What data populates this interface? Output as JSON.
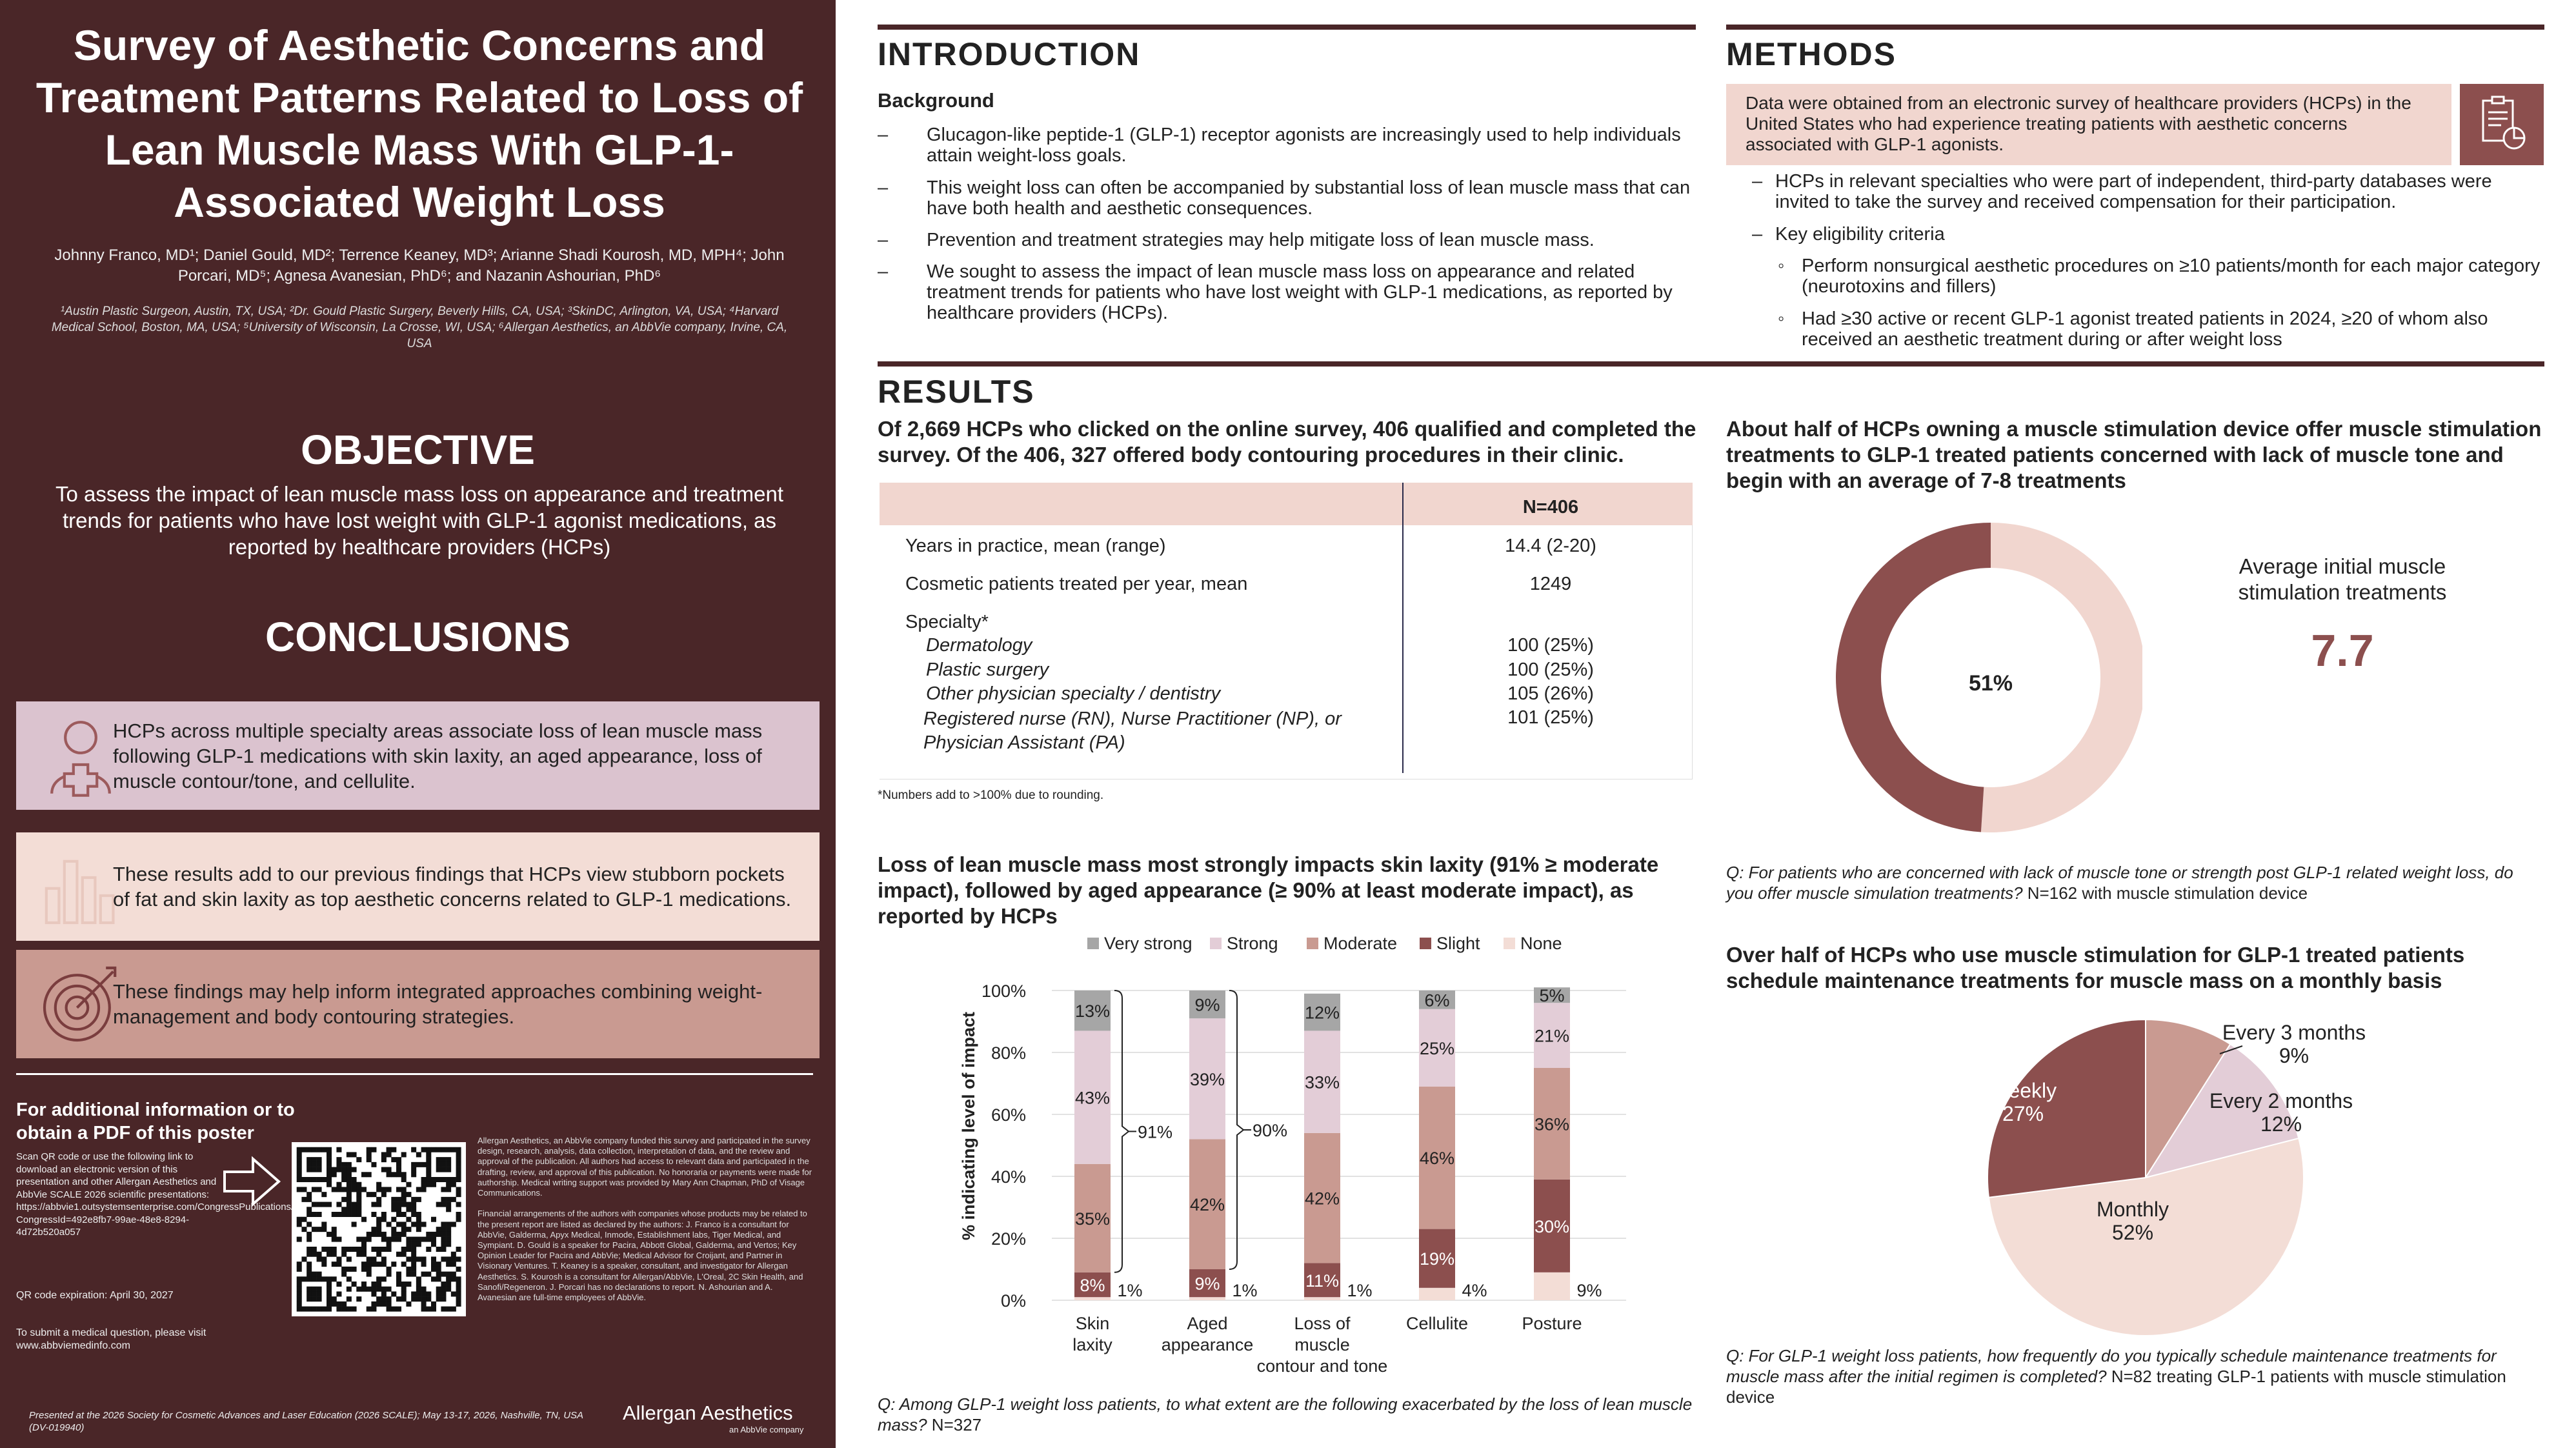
{
  "sidebar": {
    "title": "Survey of Aesthetic Concerns and Treatment Patterns Related to Loss of Lean Muscle Mass With GLP-1-Associated Weight Loss",
    "authors": "Johnny Franco, MD¹; Daniel Gould, MD²; Terrence Keaney, MD³; Arianne Shadi Kourosh, MD, MPH⁴; John Porcari, MD⁵; Agnesa Avanesian, PhD⁶; and Nazanin Ashourian, PhD⁶",
    "affiliations": "¹Austin Plastic Surgeon, Austin, TX, USA; ²Dr. Gould Plastic Surgery, Beverly Hills, CA, USA; ³SkinDC, Arlington, VA, USA; ⁴Harvard Medical School, Boston, MA, USA; ⁵University of Wisconsin, La Crosse, WI, USA; ⁶Allergan Aesthetics, an AbbVie company, Irvine, CA, USA",
    "objective_heading": "OBJECTIVE",
    "objective_text": "To assess the impact of lean muscle mass loss on appearance and treatment trends for patients who have lost weight with GLP-1 agonist medications, as reported by healthcare providers (HCPs)",
    "conclusions_heading": "CONCLUSIONS",
    "conclusions": [
      {
        "icon": "person-medical-icon",
        "text": "HCPs across multiple specialty areas associate loss of lean muscle mass following GLP-1 medications with skin laxity, an aged appearance, loss of muscle contour/tone, and cellulite.",
        "bg": "#dbc3cf"
      },
      {
        "icon": "bar-chart-icon",
        "text": "These results add to our previous findings that HCPs view stubborn pockets of fat and skin laxity as top aesthetic concerns related to GLP-1 medications.",
        "bg": "#f3ddd6"
      },
      {
        "icon": "target-icon",
        "text": "These findings may help inform integrated approaches combining weight-management and body contouring strategies.",
        "bg": "#c99a91"
      }
    ],
    "info_title": "For additional information or to obtain a PDF of this poster",
    "info_text": "Scan QR code or use the following link to download an electronic version of this presentation and other Allergan Aesthetics and AbbVie SCALE 2026 scientific presentations: https://abbvie1.outsystemsenterprise.com/CongressPublications/CongressHome?CongressId=492e8fb7-99ae-48e8-8294-4d72b520a057",
    "qr_expiration": "QR code expiration: April 30, 2027",
    "medical_question": "To submit a medical question, please visit www.abbviemedinfo.com",
    "disclosures": "Allergan Aesthetics, an AbbVie company funded this survey and participated in the survey design, research, analysis, data collection, interpretation of data, and the review and approval of the publication. All authors had access to relevant data and participated in the drafting, review, and approval of this publication. No honoraria or payments were made for authorship. Medical writing support was provided by Mary Ann Chapman, PhD of Visage Communications.\n\nFinancial arrangements of the authors with companies whose products may be related to the present report are listed as declared by the authors: J. Franco is a consultant for AbbVie, Galderma, Apyx Medical, Inmode, Establishment labs, Tiger Medical, and Sympiant. D. Gould is a speaker for Pacira, Abbott Global, Galderma, and Vertos; Key Opinion Leader for Pacira and AbbVie; Medical Advisor for Croijant, and Partner in Visionary Ventures. T. Keaney is a speaker, consultant, and investigator for Allergan Aesthetics. S. Kourosh is a consultant for Allergan/AbbVie, L'Oreal, 2C Skin Health, and Sanofi/Regeneron. J. Porcari has no declarations to report. N. Ashourian and A. Avanesian are full-time employees of AbbVie.",
    "presented": "Presented at the 2026 Society for Cosmetic Advances and Laser Education (2026 SCALE); May 13-17, 2026, Nashville, TN, USA (DV-019940)",
    "brand": "Allergan Aesthetics",
    "brand_sub": "an AbbVie company"
  },
  "intro": {
    "heading": "INTRODUCTION",
    "subheading": "Background",
    "bullets": [
      "Glucagon-like peptide-1 (GLP-1) receptor agonists are increasingly used to help individuals attain weight-loss goals.",
      "This weight loss can often be accompanied by substantial loss of lean muscle mass that can have both health and aesthetic consequences.",
      "Prevention and treatment strategies may help mitigate loss of lean muscle mass.",
      "We sought to assess the impact of lean muscle mass loss on appearance and related treatment trends for patients who have lost weight with GLP-1 medications, as reported by healthcare providers (HCPs)."
    ]
  },
  "methods": {
    "heading": "METHODS",
    "box_text": "Data were obtained from an electronic survey of healthcare providers (HCPs) in the United States who had experience treating patients with aesthetic concerns associated with GLP-1 agonists.",
    "bullets": [
      "HCPs in relevant specialties who were part of independent, third-party databases were invited to take the survey and received compensation for their participation.",
      "Key eligibility criteria"
    ],
    "sub_bullets": [
      "Perform nonsurgical aesthetic procedures on ≥10 patients/month for each major category (neurotoxins and fillers)",
      "Had ≥30 active or recent GLP-1 agonist treated patients in 2024, ≥20 of whom also received an aesthetic treatment during or after weight loss"
    ]
  },
  "results": {
    "heading": "RESULTS",
    "table_headline": "Of 2,669 HCPs who clicked on the online survey, 406 qualified and completed the survey. Of the 406, 327 offered body contouring procedures in their clinic.",
    "table": {
      "col_header": "N=406",
      "rows": [
        {
          "label": "Years in practice, mean (range)",
          "value": "14.4 (2-20)"
        },
        {
          "label": "Cosmetic patients treated per year, mean",
          "value": "1249"
        }
      ],
      "specialty_label": "Specialty*",
      "specialties": [
        {
          "label": "Dermatology",
          "value": "100 (25%)"
        },
        {
          "label": "Plastic surgery",
          "value": "100 (25%)"
        },
        {
          "label": "Other physician specialty / dentistry",
          "value": "105 (26%)"
        },
        {
          "label": "Registered nurse (RN), Nurse Practitioner (NP), or Physician Assistant (PA)",
          "value": "101 (25%)"
        }
      ],
      "footnote": "*Numbers add to >100% due to rounding."
    },
    "bar_headline": "Loss of lean muscle mass most strongly impacts skin laxity (91% ≥ moderate impact), followed by aged appearance (≥ 90% at least moderate impact), as reported by HCPs",
    "bar_question": "Q: Among GLP-1 weight loss patients, to what extent are the following exacerbated by the loss of lean muscle mass?",
    "bar_question_n": " N=327",
    "donut_headline": "About half of HCPs owning a muscle stimulation device offer muscle stimulation treatments to GLP-1 treated patients concerned with lack of muscle tone and begin with an average of 7-8 treatments",
    "donut_question": "Q: For patients who are concerned with lack of muscle tone or strength post GLP-1 related weight loss, do you offer muscle simulation treatments?",
    "donut_question_n": " N=162 with muscle stimulation device",
    "avg_label": "Average initial muscle stimulation treatments",
    "avg_value": "7.7",
    "pie_headline": "Over half of HCPs who use muscle stimulation for GLP-1 treated patients schedule maintenance treatments for muscle mass on a monthly basis",
    "pie_question": "Q: For GLP-1 weight loss patients, how frequently do you typically schedule maintenance treatments for muscle mass after the initial regimen is completed?",
    "pie_question_n": " N=82 treating GLP-1 patients with muscle stimulation device"
  },
  "colors": {
    "maroon": "#4a2628",
    "very_strong": "#a6a6a6",
    "strong": "#e3cdd7",
    "moderate": "#c99a91",
    "slight": "#8c4f4e",
    "none": "#f3ddd6",
    "donut_dark": "#8c4f4e",
    "donut_light": "#f1d6cf",
    "pink_box": "#f1d6cf",
    "accent_value": "#8c4f4e"
  },
  "chart_data": [
    {
      "type": "bar",
      "stacked": true,
      "categories": [
        "Skin laxity",
        "Aged appearance",
        "Loss of muscle contour and tone",
        "Cellulite",
        "Posture"
      ],
      "ylabel": "% indicating level of impact",
      "ylim": [
        0,
        100
      ],
      "yticks": [
        "0%",
        "20%",
        "40%",
        "60%",
        "80%",
        "100%"
      ],
      "legend_position": "top",
      "series": [
        {
          "name": "None",
          "values": [
            1,
            1,
            1,
            4,
            9
          ],
          "color": "#f3ddd6"
        },
        {
          "name": "Slight",
          "values": [
            8,
            9,
            11,
            19,
            30
          ],
          "color": "#8c4f4e"
        },
        {
          "name": "Moderate",
          "values": [
            35,
            42,
            42,
            46,
            36
          ],
          "color": "#c99a91"
        },
        {
          "name": "Strong",
          "values": [
            43,
            39,
            33,
            25,
            21
          ],
          "color": "#e3cdd7"
        },
        {
          "name": "Very strong",
          "values": [
            13,
            9,
            12,
            6,
            5
          ],
          "color": "#a6a6a6"
        }
      ],
      "labels": [
        [
          "1%",
          "8%",
          "35%",
          "43%",
          "13%"
        ],
        [
          "1%",
          "9%",
          "42%",
          "39%",
          "9%"
        ],
        [
          "1%",
          "11%",
          "42%",
          "33%",
          "12%"
        ],
        [
          "4%",
          "19%",
          "46%",
          "25%",
          "6%"
        ],
        [
          "9%",
          "30%",
          "36%",
          "21%",
          "5%"
        ]
      ],
      "brackets": [
        "91%",
        "90%"
      ]
    },
    {
      "type": "pie",
      "donut": true,
      "slices": [
        {
          "label": "51%",
          "value": 51,
          "color": "#f1d6cf"
        },
        {
          "label": "",
          "value": 49,
          "color": "#8c4f4e"
        }
      ],
      "center_label": "51%"
    },
    {
      "type": "pie",
      "slices": [
        {
          "name": "Every 3 months",
          "value": 9,
          "label": "9%",
          "color": "#c99a91"
        },
        {
          "name": "Every 2 months",
          "value": 12,
          "label": "12%",
          "color": "#e3cdd7"
        },
        {
          "name": "Monthly",
          "value": 52,
          "label": "52%",
          "color": "#f3ddd6"
        },
        {
          "name": "Weekly",
          "value": 27,
          "label": "27%",
          "color": "#8c4f4e"
        }
      ]
    }
  ]
}
